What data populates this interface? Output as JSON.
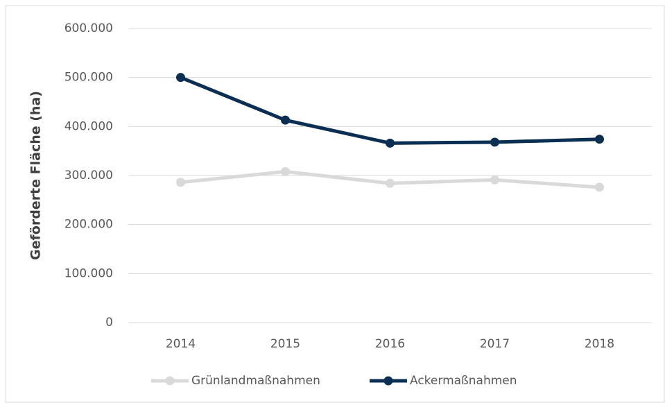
{
  "chart_data": {
    "type": "line",
    "y_label": "Geförderte Fläche (ha)",
    "categories": [
      "2014",
      "2015",
      "2016",
      "2017",
      "2018"
    ],
    "series": [
      {
        "name": "Grünlandmaßnahmen",
        "color": "#d9d9d9",
        "values": [
          286000,
          308000,
          284000,
          291000,
          276000
        ]
      },
      {
        "name": "Ackermaßnahmen",
        "color": "#0b2f53",
        "values": [
          500000,
          413000,
          366000,
          368000,
          374000
        ]
      }
    ],
    "ylim": [
      0,
      600000
    ],
    "yticks": [
      0,
      {
        "value": 100000,
        "label": "100.000"
      },
      {
        "value": 200000,
        "label": "200.000"
      },
      {
        "value": 300000,
        "label": "300.000"
      },
      {
        "value": 400000,
        "label": "400.000"
      },
      {
        "value": 500000,
        "label": "500.000"
      },
      {
        "value": 600000,
        "label": "600.000"
      }
    ],
    "grid": true,
    "legend": "bottom"
  }
}
